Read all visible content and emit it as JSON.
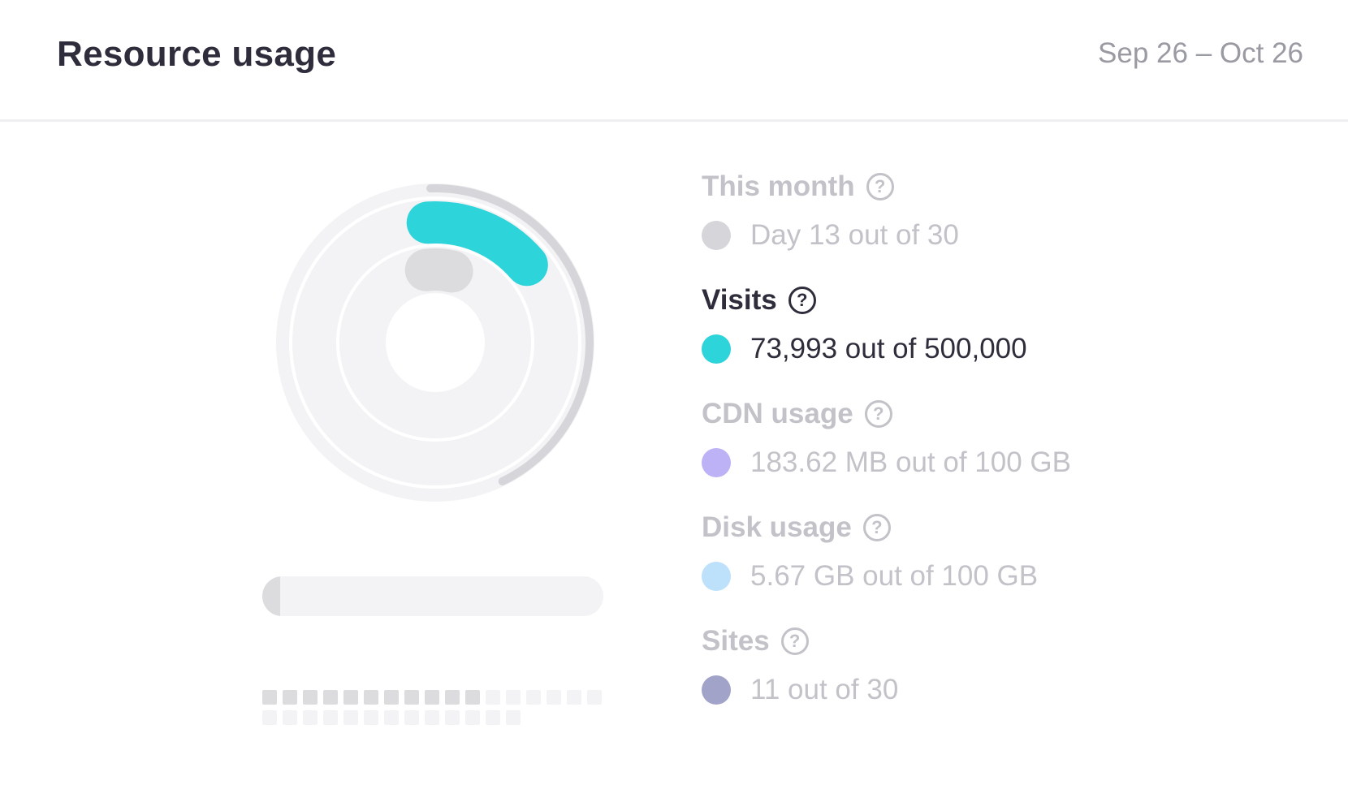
{
  "header": {
    "title": "Resource usage",
    "date_range": "Sep 26 – Oct 26"
  },
  "colors": {
    "month": "#d6d6da",
    "visits": "#2dd4da",
    "cdn": "#bdb2f5",
    "disk": "#bde0fb",
    "sites": "#a2a3c8",
    "track": "#f3f3f6",
    "inactive_text": "#c2c2c8",
    "active_text": "#2f2d3b"
  },
  "usage": {
    "month": {
      "label": "This month",
      "help_icon": "question-circle-icon",
      "value_text": "Day 13 out of 30",
      "used": 13,
      "total": 30
    },
    "visits": {
      "label": "Visits",
      "help_icon": "question-circle-icon",
      "value_text": "73,993 out of 500,000",
      "used": 73993,
      "total": 500000
    },
    "cdn": {
      "label": "CDN usage",
      "help_icon": "question-circle-icon",
      "value_text": "183.62 MB out of 100 GB",
      "fraction": 0.0018
    },
    "disk": {
      "label": "Disk usage",
      "help_icon": "question-circle-icon",
      "value_text": "5.67 GB out of 100 GB",
      "fraction": 0.0567
    },
    "sites": {
      "label": "Sites",
      "help_icon": "question-circle-icon",
      "value_text": "11 out of 30",
      "used": 11,
      "total": 30
    }
  },
  "active_item": "visits"
}
